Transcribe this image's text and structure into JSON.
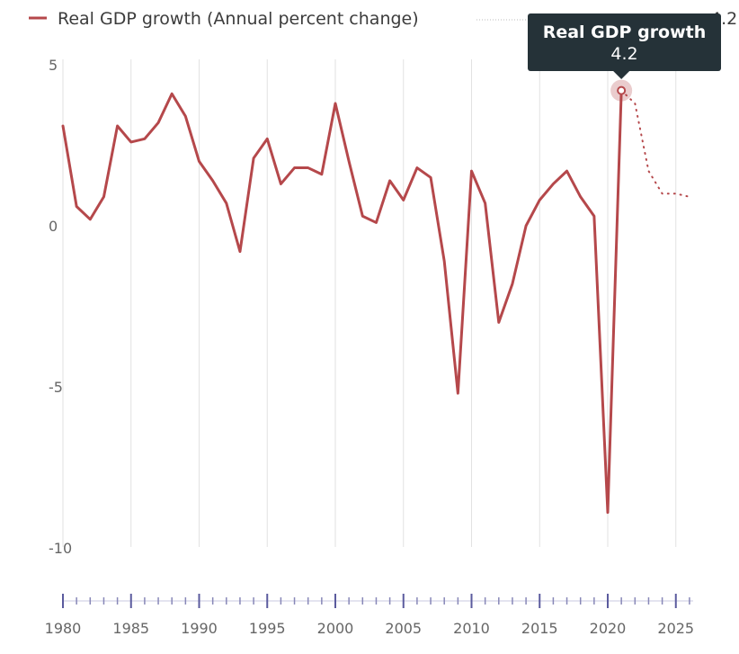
{
  "chart_data": {
    "type": "line",
    "title": "",
    "xlabel": "",
    "ylabel": "",
    "xlim": [
      1980,
      2026
    ],
    "ylim": [
      -10,
      5
    ],
    "x_tick_labels": [
      "1980",
      "1985",
      "1990",
      "1995",
      "2000",
      "2005",
      "2010",
      "2015",
      "2020",
      "2025"
    ],
    "y_tick_labels": [
      "5",
      "0",
      "-5",
      "-10"
    ],
    "grid": "vertical",
    "legend": {
      "placement": "top-left",
      "entries": [
        "Real GDP growth (Annual percent change)"
      ],
      "clipped_value_label": "4.2"
    },
    "series": [
      {
        "name": "Real GDP growth (Annual percent change)",
        "color": "#b5484b",
        "x": [
          1980,
          1981,
          1982,
          1983,
          1984,
          1985,
          1986,
          1987,
          1988,
          1989,
          1990,
          1991,
          1992,
          1993,
          1994,
          1995,
          1996,
          1997,
          1998,
          1999,
          2000,
          2001,
          2002,
          2003,
          2004,
          2005,
          2006,
          2007,
          2008,
          2009,
          2010,
          2011,
          2012,
          2013,
          2014,
          2015,
          2016,
          2017,
          2018,
          2019,
          2020,
          2021
        ],
        "values": [
          3.1,
          0.6,
          0.2,
          0.9,
          3.1,
          2.6,
          2.7,
          3.2,
          4.1,
          3.4,
          2.0,
          1.4,
          0.7,
          -0.8,
          2.1,
          2.7,
          1.3,
          1.8,
          1.8,
          1.6,
          3.8,
          2.0,
          0.3,
          0.1,
          1.4,
          0.8,
          1.8,
          1.5,
          -1.1,
          -5.2,
          1.7,
          0.7,
          -3.0,
          -1.8,
          0.0,
          0.8,
          1.3,
          1.7,
          0.9,
          0.3,
          -8.9,
          4.2
        ]
      },
      {
        "name": "",
        "style": "dotted",
        "color": "#b5484b",
        "x": [
          2021,
          2022,
          2023,
          2024,
          2025,
          2026
        ],
        "values": [
          4.2,
          3.8,
          1.7,
          1.0,
          1.0,
          0.9
        ]
      }
    ],
    "tooltip": {
      "title": "Real GDP growth",
      "value": "4.2",
      "x": 2021,
      "y": 4.2
    }
  }
}
